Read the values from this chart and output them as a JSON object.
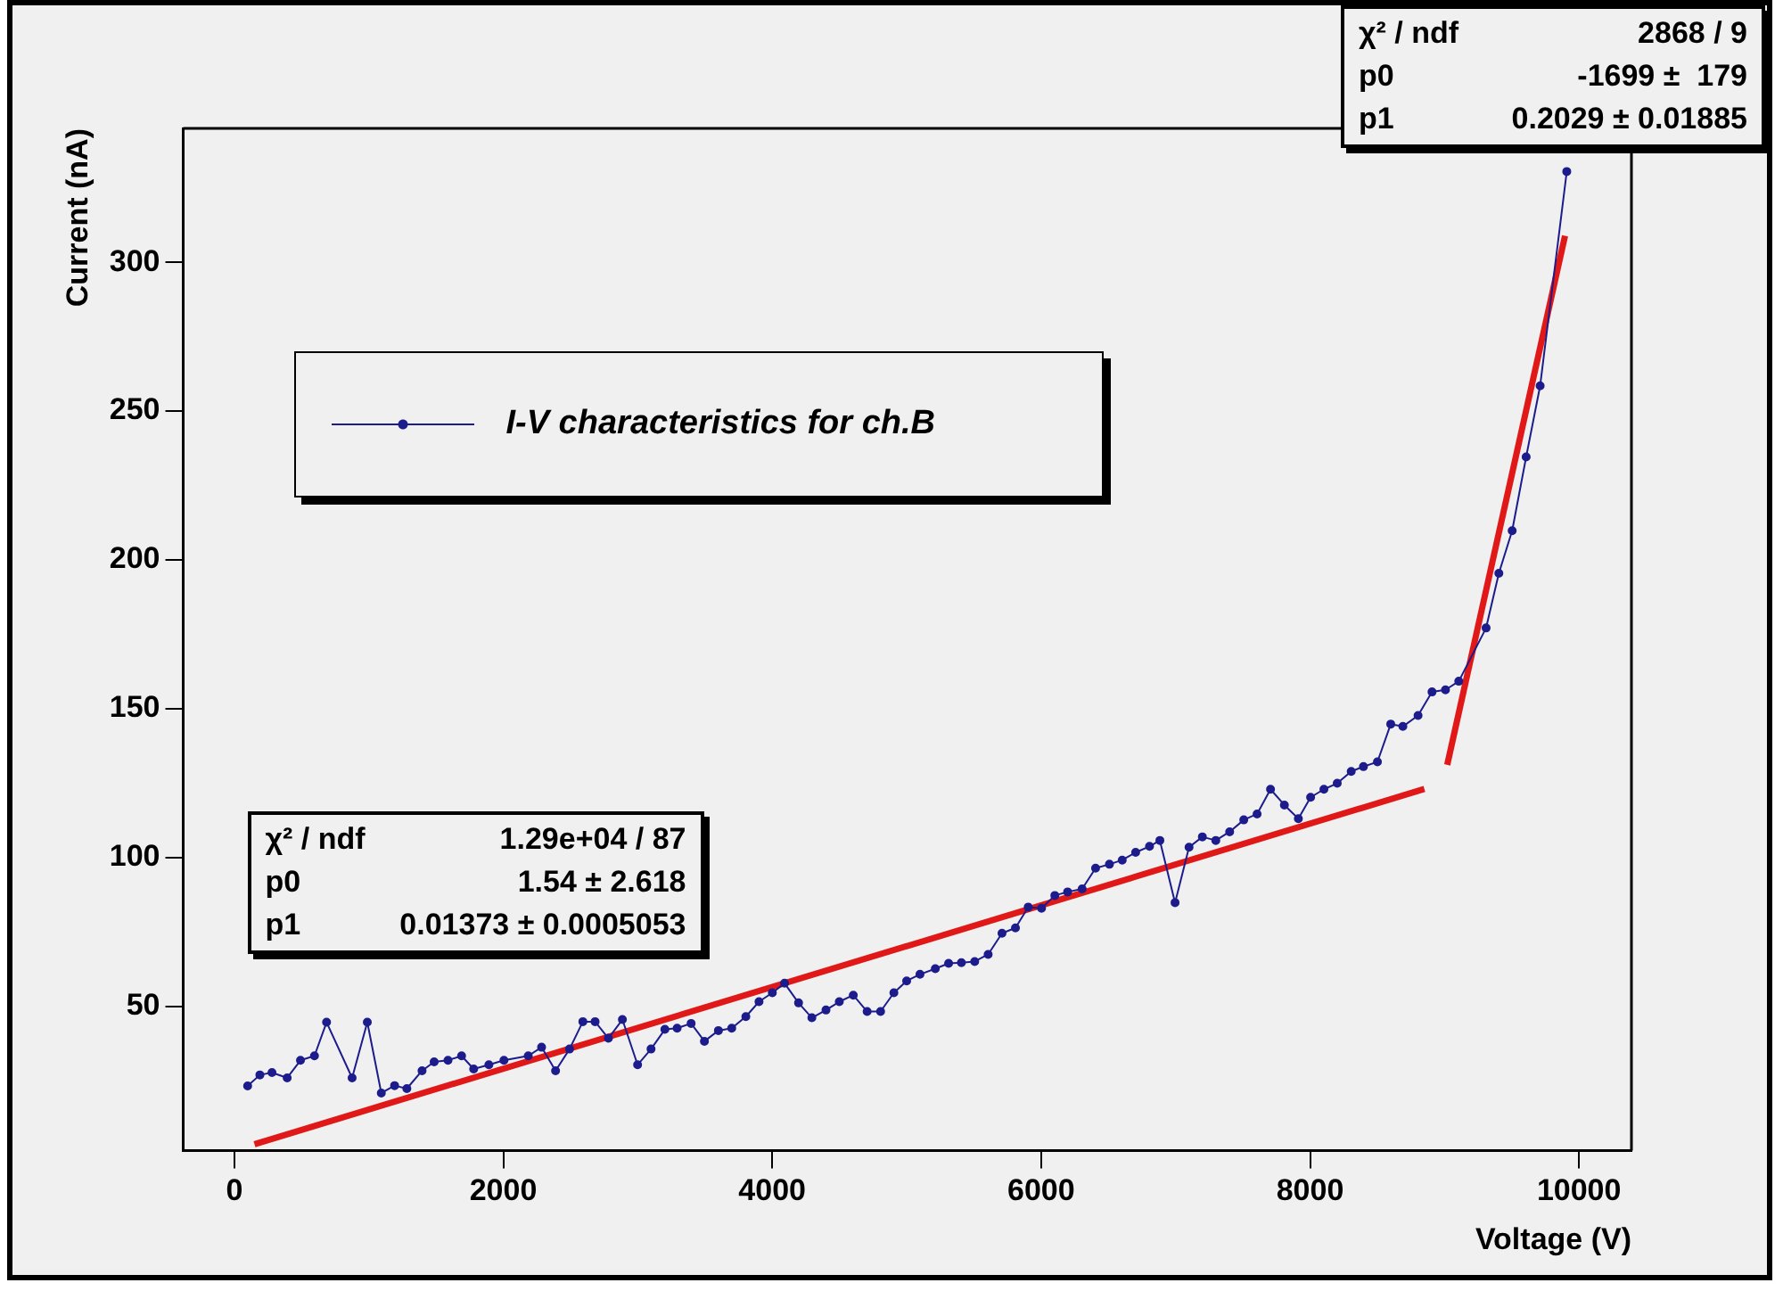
{
  "chart_data": {
    "type": "line",
    "xlabel": "Voltage (V)",
    "ylabel": "Current (nA)",
    "xlim": [
      -380,
      10390
    ],
    "ylim": [
      1.5,
      345
    ],
    "xticks": [
      0,
      2000,
      4000,
      6000,
      8000,
      10000
    ],
    "yticks": [
      50,
      100,
      150,
      200,
      250,
      300
    ],
    "legend": "top left",
    "marker": "circle",
    "line_style": "solid",
    "annotations": [
      "χ² / ndf",
      "1.29e+04 / 87",
      "p0",
      "1.54 ± 2.618",
      "p1",
      "0.01373 ± 0.0005053",
      "χ² / ndf",
      "2868 / 9",
      "p0",
      "-1699 ±  179",
      "p1",
      "0.2029 ± 0.01885"
    ],
    "series": [
      {
        "name": "I-V characteristics for ch.B",
        "color": "#1c1c8c",
        "x": [
          99,
          190,
          280,
          393,
          492,
          596,
          686,
          876,
          989,
          1093,
          1192,
          1283,
          1396,
          1486,
          1589,
          1690,
          1780,
          1893,
          2005,
          2186,
          2285,
          2389,
          2493,
          2592,
          2683,
          2782,
          2886,
          2999,
          3099,
          3202,
          3293,
          3397,
          3496,
          3600,
          3699,
          3804,
          3902,
          4001,
          4092,
          4196,
          4295,
          4400,
          4499,
          4603,
          4706,
          4806,
          4905,
          5000,
          5099,
          5213,
          5312,
          5407,
          5506,
          5606,
          5709,
          5809,
          5904,
          6003,
          6102,
          6197,
          6305,
          6405,
          6508,
          6603,
          6703,
          6806,
          6883,
          6996,
          7100,
          7199,
          7299,
          7402,
          7507,
          7606,
          7706,
          7809,
          7913,
          8004,
          8103,
          8202,
          8306,
          8397,
          8501,
          8600,
          8690,
          8803,
          8907,
          9007,
          9106,
          9309,
          9404,
          9503,
          9607,
          9711,
          9909
        ],
        "values": [
          23.2,
          26.9,
          27.7,
          25.9,
          31.8,
          33.3,
          44.6,
          25.9,
          44.6,
          20.8,
          23.3,
          22.3,
          28.3,
          31.3,
          31.8,
          33.3,
          28.9,
          30.3,
          31.8,
          33.3,
          36.2,
          28.3,
          35.6,
          44.8,
          44.8,
          39.2,
          45.5,
          30.3,
          35.6,
          42.2,
          42.6,
          44.2,
          38.2,
          41.8,
          42.6,
          46.5,
          51.5,
          54.5,
          57.7,
          51.1,
          46.1,
          48.7,
          51.5,
          53.7,
          48.2,
          48.2,
          54.5,
          58.5,
          60.7,
          62.6,
          64.4,
          64.6,
          65.0,
          67.4,
          74.5,
          76.3,
          83.3,
          82.9,
          87.2,
          88.4,
          89.4,
          96.4,
          97.7,
          99.1,
          101.7,
          103.7,
          105.7,
          84.8,
          103.4,
          106.9,
          105.7,
          108.6,
          112.6,
          114.6,
          122.9,
          117.6,
          113.0,
          120.2,
          122.9,
          124.9,
          128.9,
          130.5,
          132.1,
          144.8,
          144.0,
          147.7,
          155.6,
          156.3,
          159.2,
          177.1,
          195.5,
          209.8,
          234.6,
          258.5,
          330.5
        ]
      },
      {
        "color": "#e01818",
        "marker": "none",
        "x": [
          150,
          8850
        ],
        "values": [
          3.6,
          123.0
        ]
      },
      {
        "color": "#e01818",
        "marker": "none",
        "x": [
          9020,
          9896
        ],
        "values": [
          131.1,
          308.9
        ]
      }
    ]
  }
}
